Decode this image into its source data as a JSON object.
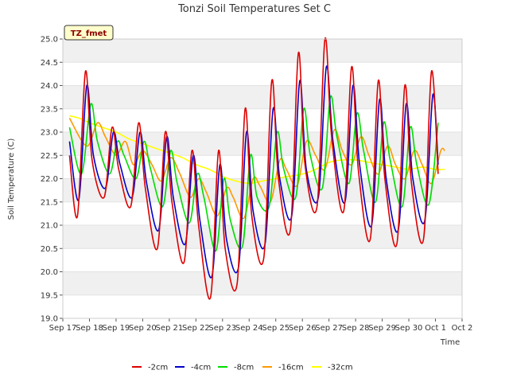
{
  "chart_data": {
    "type": "line",
    "title": "Tonzi Soil Temperatures Set C",
    "xlabel": "Time",
    "ylabel": "Soil Temperature (C)",
    "annotation": "TZ_fmet",
    "ylim": [
      19.0,
      25.0
    ],
    "xlim": [
      17,
      32
    ],
    "y_ticks": [
      "19.0",
      "19.5",
      "20.0",
      "20.5",
      "21.0",
      "21.5",
      "22.0",
      "22.5",
      "23.0",
      "23.5",
      "24.0",
      "24.5",
      "25.0"
    ],
    "x_ticks": [
      "Sep 17",
      "Sep 18",
      "Sep 19",
      "Sep 20",
      "Sep 21",
      "Sep 22",
      "Sep 23",
      "Sep 24",
      "Sep 25",
      "Sep 26",
      "Sep 27",
      "Sep 28",
      "Sep 29",
      "Sep 30",
      "Oct 1",
      "Oct 2"
    ],
    "x_tick_values": [
      17,
      18,
      19,
      20,
      21,
      22,
      23,
      24,
      25,
      26,
      27,
      28,
      29,
      30,
      31,
      32
    ],
    "grid": "horizontal bands",
    "legend_position": "bottom",
    "series": [
      {
        "name": "-2cm",
        "color": "#dd0000",
        "x": [
          17.25,
          17.55,
          17.85,
          18.1,
          18.55,
          18.85,
          19.1,
          19.55,
          19.85,
          20.1,
          20.55,
          20.85,
          21.1,
          21.55,
          21.85,
          22.1,
          22.55,
          22.85,
          23.1,
          23.55,
          23.85,
          24.1,
          24.55,
          24.85,
          25.1,
          25.55,
          25.85,
          26.1,
          26.55,
          26.85,
          27.1,
          27.55,
          27.85,
          28.1,
          28.55,
          28.85,
          29.1,
          29.55,
          29.85,
          30.1,
          30.55,
          30.85,
          31.1
        ],
        "y": [
          22.5,
          21.2,
          24.3,
          22.4,
          21.6,
          23.1,
          22.2,
          21.4,
          23.2,
          21.8,
          20.5,
          23.0,
          21.5,
          20.2,
          22.6,
          21.0,
          19.45,
          22.6,
          20.5,
          19.75,
          23.5,
          21.2,
          20.3,
          24.1,
          22.0,
          20.9,
          24.7,
          22.3,
          21.4,
          25.0,
          22.9,
          21.3,
          24.4,
          22.2,
          20.7,
          24.1,
          22.0,
          20.6,
          24.0,
          21.9,
          20.7,
          24.3,
          22.1
        ]
      },
      {
        "name": "-4cm",
        "color": "#0000cc",
        "x": [
          17.25,
          17.6,
          17.9,
          18.15,
          18.6,
          18.9,
          19.15,
          19.6,
          19.9,
          20.15,
          20.6,
          20.9,
          21.15,
          21.6,
          21.9,
          22.15,
          22.6,
          22.9,
          23.15,
          23.6,
          23.9,
          24.15,
          24.6,
          24.9,
          25.15,
          25.6,
          25.9,
          26.15,
          26.6,
          26.9,
          27.15,
          27.6,
          27.9,
          28.15,
          28.6,
          28.9,
          29.15,
          29.6,
          29.9,
          30.15,
          30.6,
          30.9,
          31.1
        ],
        "y": [
          22.8,
          21.55,
          24.0,
          22.5,
          21.8,
          23.0,
          22.3,
          21.6,
          23.0,
          21.9,
          20.9,
          22.9,
          21.6,
          20.6,
          22.5,
          21.1,
          19.9,
          22.3,
          20.7,
          20.1,
          23.0,
          21.3,
          20.6,
          23.5,
          22.0,
          21.2,
          24.1,
          22.2,
          21.6,
          24.4,
          22.8,
          21.5,
          24.0,
          22.3,
          21.0,
          23.7,
          22.0,
          20.9,
          23.6,
          22.0,
          21.1,
          23.8,
          22.3
        ]
      },
      {
        "name": "-8cm",
        "color": "#00dd00",
        "x": [
          17.25,
          17.7,
          18.05,
          18.3,
          18.75,
          19.05,
          19.3,
          19.75,
          20.05,
          20.3,
          20.75,
          21.05,
          21.3,
          21.75,
          22.05,
          22.3,
          22.75,
          23.05,
          23.3,
          23.75,
          24.05,
          24.3,
          24.75,
          25.05,
          25.3,
          25.75,
          26.05,
          26.3,
          26.75,
          27.05,
          27.3,
          27.75,
          28.05,
          28.3,
          28.75,
          29.05,
          29.3,
          29.75,
          30.05,
          30.3,
          30.75,
          31.1
        ],
        "y": [
          23.1,
          22.1,
          23.6,
          22.8,
          22.1,
          22.8,
          22.5,
          22.0,
          22.8,
          22.2,
          21.4,
          22.6,
          21.9,
          21.05,
          22.1,
          21.6,
          20.45,
          22.0,
          21.1,
          20.55,
          22.5,
          21.6,
          21.4,
          23.0,
          22.2,
          21.6,
          23.5,
          22.5,
          21.8,
          23.75,
          22.9,
          21.9,
          23.4,
          22.6,
          21.5,
          23.2,
          22.4,
          21.4,
          23.1,
          22.3,
          21.45,
          23.2
        ]
      },
      {
        "name": "-16cm",
        "color": "#ff9900",
        "x": [
          17.25,
          17.9,
          18.3,
          18.6,
          19.0,
          19.35,
          19.65,
          20.0,
          20.35,
          20.7,
          21.05,
          21.4,
          21.8,
          22.1,
          22.4,
          22.8,
          23.15,
          23.4,
          23.8,
          24.15,
          24.4,
          24.8,
          25.15,
          25.4,
          25.8,
          26.15,
          26.5,
          26.85,
          27.2,
          27.5,
          27.85,
          28.2,
          28.5,
          28.85,
          29.2,
          29.5,
          29.85,
          30.2,
          30.5,
          30.85,
          31.2,
          31.35
        ],
        "y": [
          23.3,
          22.7,
          23.2,
          22.9,
          22.5,
          22.8,
          22.3,
          22.6,
          22.3,
          21.95,
          22.45,
          22.1,
          21.6,
          22.0,
          21.7,
          21.2,
          21.8,
          21.6,
          21.15,
          22.0,
          21.85,
          21.5,
          22.4,
          22.2,
          21.85,
          22.8,
          22.5,
          22.2,
          23.05,
          22.6,
          22.3,
          22.9,
          22.5,
          22.1,
          22.7,
          22.3,
          22.0,
          22.6,
          22.3,
          21.9,
          22.6,
          22.6
        ]
      },
      {
        "name": "-32cm",
        "color": "#ffff00",
        "x": [
          17.25,
          17.6,
          18.0,
          18.5,
          19.0,
          19.5,
          20.0,
          20.5,
          21.0,
          21.5,
          22.0,
          22.5,
          23.0,
          23.5,
          24.0,
          24.5,
          25.0,
          25.5,
          26.0,
          26.5,
          27.0,
          27.5,
          28.0,
          28.5,
          29.0,
          29.5,
          30.0,
          30.5,
          31.0,
          31.35
        ],
        "y": [
          23.35,
          23.3,
          23.2,
          23.1,
          23.0,
          22.85,
          22.75,
          22.65,
          22.55,
          22.45,
          22.3,
          22.2,
          22.05,
          21.95,
          21.9,
          21.95,
          22.0,
          22.05,
          22.1,
          22.2,
          22.35,
          22.4,
          22.4,
          22.35,
          22.3,
          22.25,
          22.2,
          22.25,
          22.2,
          22.2
        ]
      }
    ]
  }
}
